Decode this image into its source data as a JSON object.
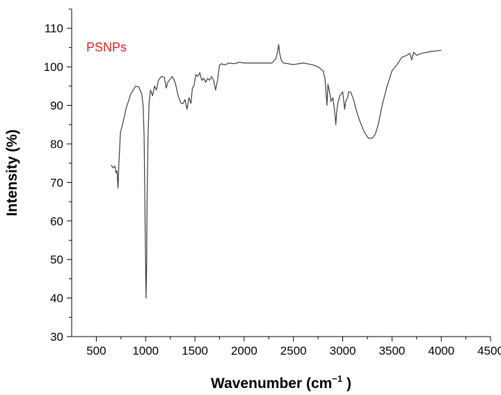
{
  "chart_data": {
    "type": "line",
    "title": "",
    "xlabel": "Wavenumber (cm",
    "xlabel_sup": "−1",
    "xlabel_end": " )",
    "ylabel": "Intensity (%)",
    "xlim": [
      250,
      4500
    ],
    "ylim": [
      30,
      115
    ],
    "x_ticks": [
      500,
      1000,
      1500,
      2000,
      2500,
      3000,
      3500,
      4000,
      4500
    ],
    "y_ticks": [
      30,
      40,
      50,
      60,
      70,
      80,
      90,
      100,
      110
    ],
    "grid": false,
    "colors": {
      "line": "#3a3a3a",
      "label": "#e8211b",
      "axis": "#000000"
    },
    "series": [
      {
        "name": "PSNPs",
        "x": [
          650,
          670,
          690,
          700,
          710,
          720,
          730,
          745,
          770,
          800,
          850,
          900,
          930,
          960,
          975,
          985,
          995,
          1005,
          1010,
          1015,
          1025,
          1035,
          1050,
          1070,
          1090,
          1110,
          1130,
          1160,
          1190,
          1210,
          1225,
          1240,
          1270,
          1300,
          1330,
          1360,
          1380,
          1400,
          1420,
          1440,
          1460,
          1475,
          1490,
          1510,
          1530,
          1550,
          1570,
          1590,
          1610,
          1630,
          1650,
          1670,
          1690,
          1710,
          1730,
          1750,
          1770,
          1800,
          1850,
          1900,
          1950,
          2000,
          2100,
          2200,
          2280,
          2320,
          2340,
          2350,
          2360,
          2380,
          2400,
          2500,
          2600,
          2700,
          2750,
          2800,
          2820,
          2840,
          2850,
          2870,
          2880,
          2900,
          2920,
          2930,
          2940,
          2950,
          2970,
          3000,
          3020,
          3030,
          3050,
          3060,
          3080,
          3110,
          3140,
          3180,
          3220,
          3260,
          3300,
          3330,
          3360,
          3400,
          3450,
          3500,
          3550,
          3600,
          3650,
          3680,
          3700,
          3720,
          3750,
          3800,
          3900,
          4000
        ],
        "values": [
          74.5,
          73.8,
          74.2,
          72.5,
          73.0,
          68.5,
          75.5,
          83.0,
          85.5,
          89.0,
          93.0,
          95.0,
          94.8,
          93.0,
          90.0,
          82.0,
          60.0,
          40.0,
          48.0,
          66.0,
          82.0,
          90.5,
          94.0,
          92.5,
          95.0,
          94.0,
          96.5,
          97.5,
          97.3,
          94.5,
          96.0,
          96.5,
          97.5,
          96.0,
          92.5,
          90.5,
          90.5,
          91.5,
          89.0,
          92.0,
          90.5,
          94.5,
          95.0,
          98.0,
          97.5,
          98.5,
          96.5,
          97.0,
          96.0,
          97.0,
          96.5,
          97.5,
          96.5,
          94.0,
          96.5,
          100.5,
          100.8,
          100.5,
          101.0,
          100.8,
          101.2,
          101.0,
          101.0,
          101.0,
          101.0,
          102.0,
          104.0,
          105.8,
          103.5,
          101.5,
          101.0,
          100.6,
          101.0,
          100.5,
          100.0,
          99.0,
          97.0,
          90.0,
          95.5,
          93.0,
          91.0,
          92.0,
          88.0,
          85.0,
          88.5,
          90.5,
          92.5,
          93.5,
          89.0,
          91.0,
          92.0,
          93.5,
          93.5,
          91.5,
          88.5,
          85.5,
          83.0,
          81.5,
          81.5,
          82.5,
          85.0,
          90.0,
          95.0,
          99.0,
          100.5,
          102.5,
          103.0,
          103.5,
          101.8,
          103.8,
          103.0,
          103.5,
          104.0,
          104.3
        ]
      }
    ]
  }
}
